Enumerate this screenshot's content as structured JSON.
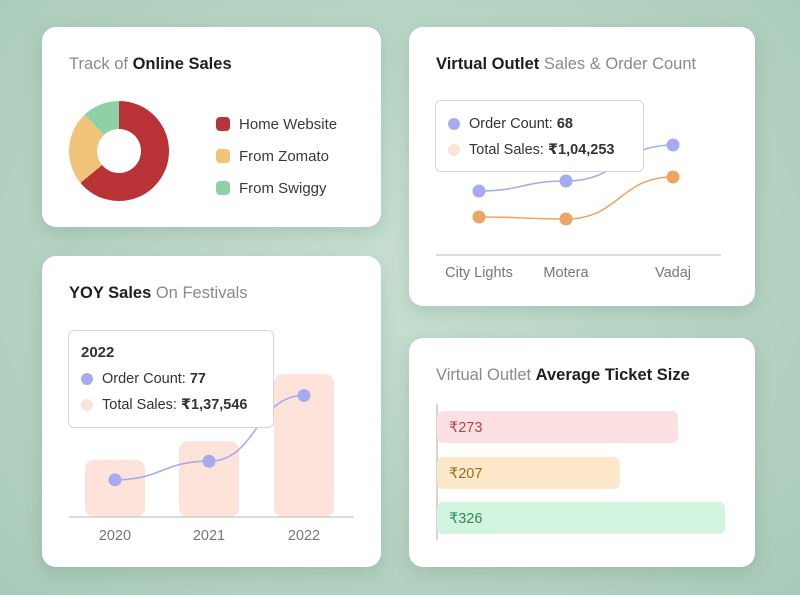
{
  "colors": {
    "background": "#b9d5c5",
    "donut_red": "#b83236",
    "donut_yellow": "#f1c27a",
    "donut_green": "#8fd1a6",
    "order_line": "#a6abef",
    "sales_line": "#eba761",
    "bar_fill": "#fde3d9"
  },
  "online_sales": {
    "title_light": "Track of ",
    "title_bold": "Online Sales",
    "chart_data": {
      "type": "pie",
      "labels": [
        "Home Website",
        "From Zomato",
        "From Swiggy"
      ],
      "values": [
        64,
        24,
        12
      ],
      "colors": [
        "#b83236",
        "#f1c27a",
        "#8fd1a6"
      ],
      "legend": "right"
    }
  },
  "virtual_outlet": {
    "title_bold": "Virtual Outlet",
    "title_light": " Sales & Order Count",
    "tooltip": {
      "order_label": "Order Count:",
      "order_value": "68",
      "sales_label": "Total Sales:",
      "sales_value": "₹1,04,253"
    },
    "chart_data": {
      "type": "line",
      "categories": [
        "City Lights",
        "Motera",
        "Vadaj"
      ],
      "series": [
        {
          "values": [
            48,
            53,
            71
          ],
          "color": "#a6abef"
        },
        {
          "values": [
            35,
            34,
            55
          ],
          "color": "#eba761"
        }
      ],
      "ylim": [
        0,
        100
      ]
    }
  },
  "yoy_sales": {
    "title_bold": "YOY Sales",
    "title_light": " On Festivals",
    "tooltip": {
      "year": "2022",
      "order_label": "Order Count:",
      "order_value": "77",
      "sales_label": "Total Sales:",
      "sales_value": "₹1,37,546"
    },
    "chart_data": {
      "type": "bar",
      "categories": [
        "2020",
        "2021",
        "2022"
      ],
      "values": [
        40,
        53,
        100
      ],
      "line_values": [
        26,
        39,
        85
      ],
      "ylim": [
        0,
        100
      ]
    }
  },
  "ticket_size": {
    "title_light": "Virtual Outlet ",
    "title_bold": "Average Ticket Size",
    "chart_data": {
      "type": "bar",
      "orientation": "horizontal",
      "categories": [
        "₹273",
        "₹207",
        "₹326"
      ],
      "values": [
        273,
        207,
        326
      ],
      "xlim": [
        0,
        326
      ],
      "bar_colors": [
        "#fde1e2",
        "#fde9c9",
        "#d3f4de"
      ],
      "label_colors": [
        "#b3424a",
        "#9a6a24",
        "#2f8a53"
      ]
    }
  }
}
